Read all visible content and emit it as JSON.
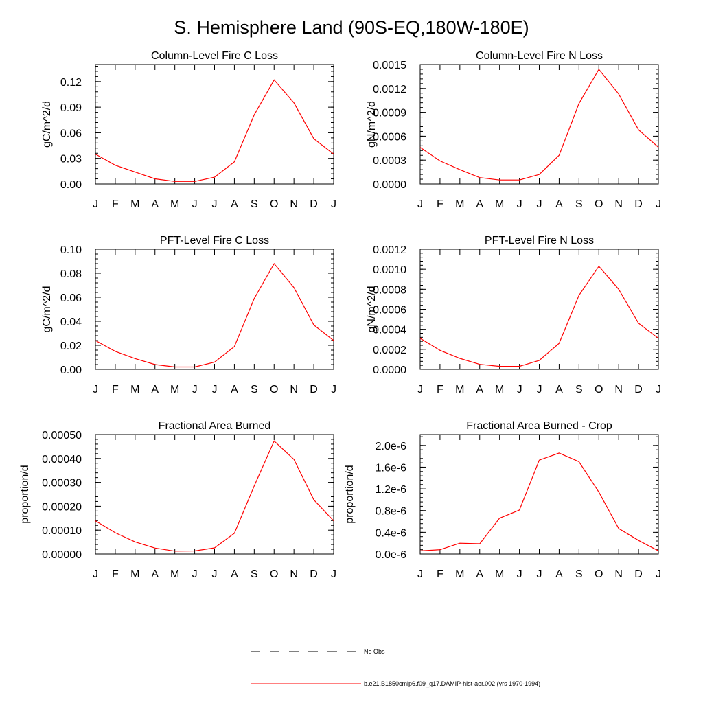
{
  "figure": {
    "title": "S. Hemisphere Land (90S-EQ,180W-180E)",
    "legend": [
      {
        "label": "No Obs",
        "style": "dashed",
        "color": "#000000"
      },
      {
        "label": "b.e21.B1850cmip6.f09_g17.DAMIP-hist-aer.002 (yrs 1970-1994)",
        "style": "solid",
        "color": "#ff0000"
      }
    ]
  },
  "chart_data": [
    {
      "type": "line",
      "title": "Column-Level Fire C Loss",
      "ylabel": "gC/m^2/d",
      "xlabel": "",
      "categories": [
        "J",
        "F",
        "M",
        "A",
        "M",
        "J",
        "J",
        "A",
        "S",
        "O",
        "N",
        "D",
        "J"
      ],
      "ylim": [
        0,
        0.14
      ],
      "yticks": [
        "0.00",
        "0.03",
        "0.06",
        "0.09",
        "0.12"
      ],
      "ytick_values": [
        0,
        0.03,
        0.06,
        0.09,
        0.12
      ],
      "series": [
        {
          "color": "#ff0000",
          "values": [
            0.035,
            0.022,
            0.014,
            0.006,
            0.003,
            0.003,
            0.008,
            0.026,
            0.081,
            0.122,
            0.095,
            0.053,
            0.035
          ]
        }
      ]
    },
    {
      "type": "line",
      "title": "Column-Level Fire N Loss",
      "ylabel": "gN/m^2/d",
      "xlabel": "",
      "categories": [
        "J",
        "F",
        "M",
        "A",
        "M",
        "J",
        "J",
        "A",
        "S",
        "O",
        "N",
        "D",
        "J"
      ],
      "ylim": [
        0,
        0.0015
      ],
      "yticks": [
        "0.0000",
        "0.0003",
        "0.0006",
        "0.0009",
        "0.0012",
        "0.0015"
      ],
      "ytick_values": [
        0,
        0.0003,
        0.0006,
        0.0009,
        0.0012,
        0.0015
      ],
      "series": [
        {
          "color": "#ff0000",
          "values": [
            0.00046,
            0.00029,
            0.00018,
            8e-05,
            5e-05,
            5e-05,
            0.00012,
            0.00036,
            0.00101,
            0.00144,
            0.00113,
            0.00068,
            0.00046
          ]
        }
      ]
    },
    {
      "type": "line",
      "title": "PFT-Level Fire C Loss",
      "ylabel": "gC/m^2/d",
      "xlabel": "",
      "categories": [
        "J",
        "F",
        "M",
        "A",
        "M",
        "J",
        "J",
        "A",
        "S",
        "O",
        "N",
        "D",
        "J"
      ],
      "ylim": [
        0,
        0.1
      ],
      "yticks": [
        "0.00",
        "0.02",
        "0.04",
        "0.06",
        "0.08",
        "0.10"
      ],
      "ytick_values": [
        0,
        0.02,
        0.04,
        0.06,
        0.08,
        0.1
      ],
      "series": [
        {
          "color": "#ff0000",
          "values": [
            0.024,
            0.015,
            0.009,
            0.004,
            0.002,
            0.002,
            0.006,
            0.019,
            0.059,
            0.088,
            0.068,
            0.037,
            0.024
          ]
        }
      ]
    },
    {
      "type": "line",
      "title": "PFT-Level Fire N Loss",
      "ylabel": "gN/m^2/d",
      "xlabel": "",
      "categories": [
        "J",
        "F",
        "M",
        "A",
        "M",
        "J",
        "J",
        "A",
        "S",
        "O",
        "N",
        "D",
        "J"
      ],
      "ylim": [
        0,
        0.0012
      ],
      "yticks": [
        "0.0000",
        "0.0002",
        "0.0004",
        "0.0006",
        "0.0008",
        "0.0010",
        "0.0012"
      ],
      "ytick_values": [
        0,
        0.0002,
        0.0004,
        0.0006,
        0.0008,
        0.001,
        0.0012
      ],
      "series": [
        {
          "color": "#ff0000",
          "values": [
            0.00031,
            0.00019,
            0.00011,
            5e-05,
            3e-05,
            3e-05,
            9e-05,
            0.00026,
            0.00074,
            0.00103,
            0.0008,
            0.00046,
            0.00031
          ]
        }
      ]
    },
    {
      "type": "line",
      "title": "Fractional Area Burned",
      "ylabel": "proportion/d",
      "xlabel": "",
      "categories": [
        "J",
        "F",
        "M",
        "A",
        "M",
        "J",
        "J",
        "A",
        "S",
        "O",
        "N",
        "D",
        "J"
      ],
      "ylim": [
        0,
        0.0005
      ],
      "yticks": [
        "0.00000",
        "0.00010",
        "0.00020",
        "0.00030",
        "0.00040",
        "0.00050"
      ],
      "ytick_values": [
        0,
        0.0001,
        0.0002,
        0.0003,
        0.0004,
        0.0005
      ],
      "series": [
        {
          "color": "#ff0000",
          "values": [
            0.000139,
            8.9e-05,
            5.1e-05,
            2.5e-05,
            1.2e-05,
            1.3e-05,
            2.6e-05,
            8.7e-05,
            0.000285,
            0.000473,
            0.000396,
            0.000227,
            0.000139
          ]
        }
      ]
    },
    {
      "type": "line",
      "title": "Fractional Area Burned - Crop",
      "ylabel": "proportion/d",
      "xlabel": "",
      "categories": [
        "J",
        "F",
        "M",
        "A",
        "M",
        "J",
        "J",
        "A",
        "S",
        "O",
        "N",
        "D",
        "J"
      ],
      "ylim": [
        0,
        2.2e-06
      ],
      "yticks": [
        "0.0e-6",
        "0.4e-6",
        "0.8e-6",
        "1.2e-6",
        "1.6e-6",
        "2.0e-6"
      ],
      "ytick_values": [
        0,
        4e-07,
        8e-07,
        1.2e-06,
        1.6e-06,
        2e-06
      ],
      "series": [
        {
          "color": "#ff0000",
          "values": [
            6e-08,
            8e-08,
            2e-07,
            1.9e-07,
            6.6e-07,
            8.1e-07,
            1.73e-06,
            1.86e-06,
            1.7e-06,
            1.14e-06,
            4.7e-07,
            2.5e-07,
            6e-08
          ]
        }
      ]
    }
  ]
}
